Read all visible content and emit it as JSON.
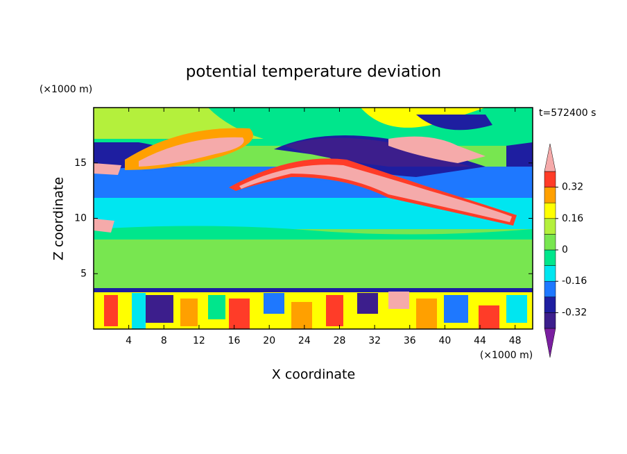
{
  "chart_data": {
    "type": "contour",
    "title": "potential temperature deviation",
    "x_label": "X coordinate",
    "y_label": "Z coordinate",
    "x_unit": "(×1000 m)",
    "y_unit": "(×1000 m)",
    "annotation": "t=572400 s",
    "xlim": [
      0,
      50
    ],
    "ylim": [
      0,
      20
    ],
    "xticks": [
      4,
      8,
      12,
      16,
      20,
      24,
      28,
      32,
      36,
      40,
      44,
      48
    ],
    "yticks": [
      5,
      10,
      15
    ],
    "colorbar": {
      "levels": [
        -0.4,
        -0.32,
        -0.24,
        -0.16,
        -0.08,
        0,
        0.08,
        0.16,
        0.24,
        0.32,
        0.4
      ],
      "colors": [
        "#7a1fa0",
        "#3c1e8c",
        "#1e1ea0",
        "#1e78ff",
        "#00e6f0",
        "#00e68c",
        "#78e650",
        "#b4f03c",
        "#ffff00",
        "#ffa000",
        "#ff3c28",
        "#f5aaaa"
      ],
      "ticks": [
        -0.32,
        -0.16,
        0,
        0.16,
        0.32
      ]
    }
  }
}
